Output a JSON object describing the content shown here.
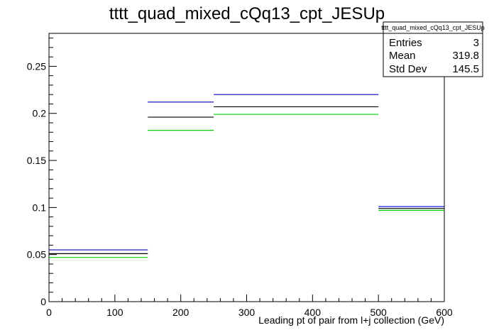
{
  "chart_data": {
    "type": "histogram",
    "title": "tttt_quad_mixed_cQq13_cpt_JESUp",
    "xlabel": "Leading pt of pair from l+j collection (GeV)",
    "ylabel": "",
    "xlim": [
      0,
      600
    ],
    "ylim": [
      0,
      0.285
    ],
    "x_ticks": [
      "0",
      "100",
      "200",
      "300",
      "400",
      "500",
      "600"
    ],
    "y_ticks": [
      "0",
      "0.05",
      "0.1",
      "0.15",
      "0.2",
      "0.25"
    ],
    "bin_edges": [
      0,
      150,
      250,
      500,
      600
    ],
    "series": [
      {
        "color": "#0000cc",
        "values": [
          0.055,
          0.212,
          0.22,
          0.101
        ]
      },
      {
        "color": "#000000",
        "values": [
          0.051,
          0.196,
          0.207,
          0.099
        ]
      },
      {
        "color": "#00cc00",
        "values": [
          0.047,
          0.182,
          0.199,
          0.097
        ]
      }
    ],
    "grid": false,
    "legend": "none"
  },
  "stats_box": {
    "title": "tttt_quad_mixed_cQq13_cpt_JESUp",
    "rows": [
      {
        "label": "Entries",
        "value": "3"
      },
      {
        "label": "Mean",
        "value": "319.8"
      },
      {
        "label": "Std Dev",
        "value": "145.5"
      }
    ]
  }
}
